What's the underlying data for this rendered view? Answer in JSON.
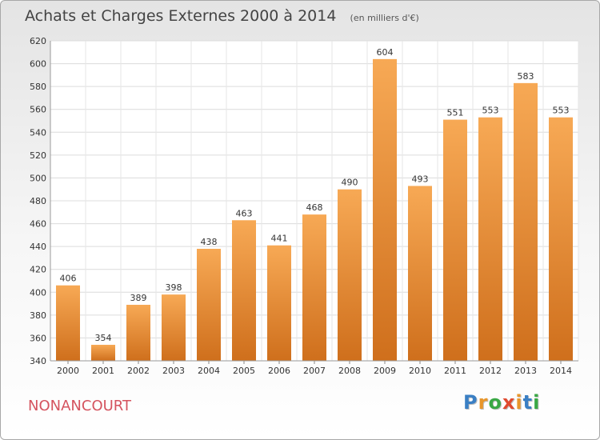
{
  "chart_data": {
    "type": "bar",
    "title": "Achats et Charges Externes 2000 à 2014",
    "subtitle": "(en milliers d'€)",
    "categories": [
      "2000",
      "2001",
      "2002",
      "2003",
      "2004",
      "2005",
      "2006",
      "2007",
      "2008",
      "2009",
      "2010",
      "2011",
      "2012",
      "2013",
      "2014"
    ],
    "values": [
      406,
      354,
      389,
      398,
      438,
      463,
      441,
      468,
      490,
      604,
      493,
      551,
      553,
      583,
      553
    ],
    "ylim": [
      340,
      620
    ],
    "yticks": [
      340,
      360,
      380,
      400,
      420,
      440,
      460,
      480,
      500,
      520,
      540,
      560,
      580,
      600,
      620
    ],
    "grid": true,
    "bar_color": "#f0a050"
  },
  "commune": "NONANCOURT",
  "brand": {
    "text": "Proxiti",
    "letter_colors": [
      "#3a7fc4",
      "#e8962b",
      "#3aa845",
      "#e04a2f",
      "#e8962b",
      "#3a7fc4",
      "#3aa845"
    ]
  }
}
